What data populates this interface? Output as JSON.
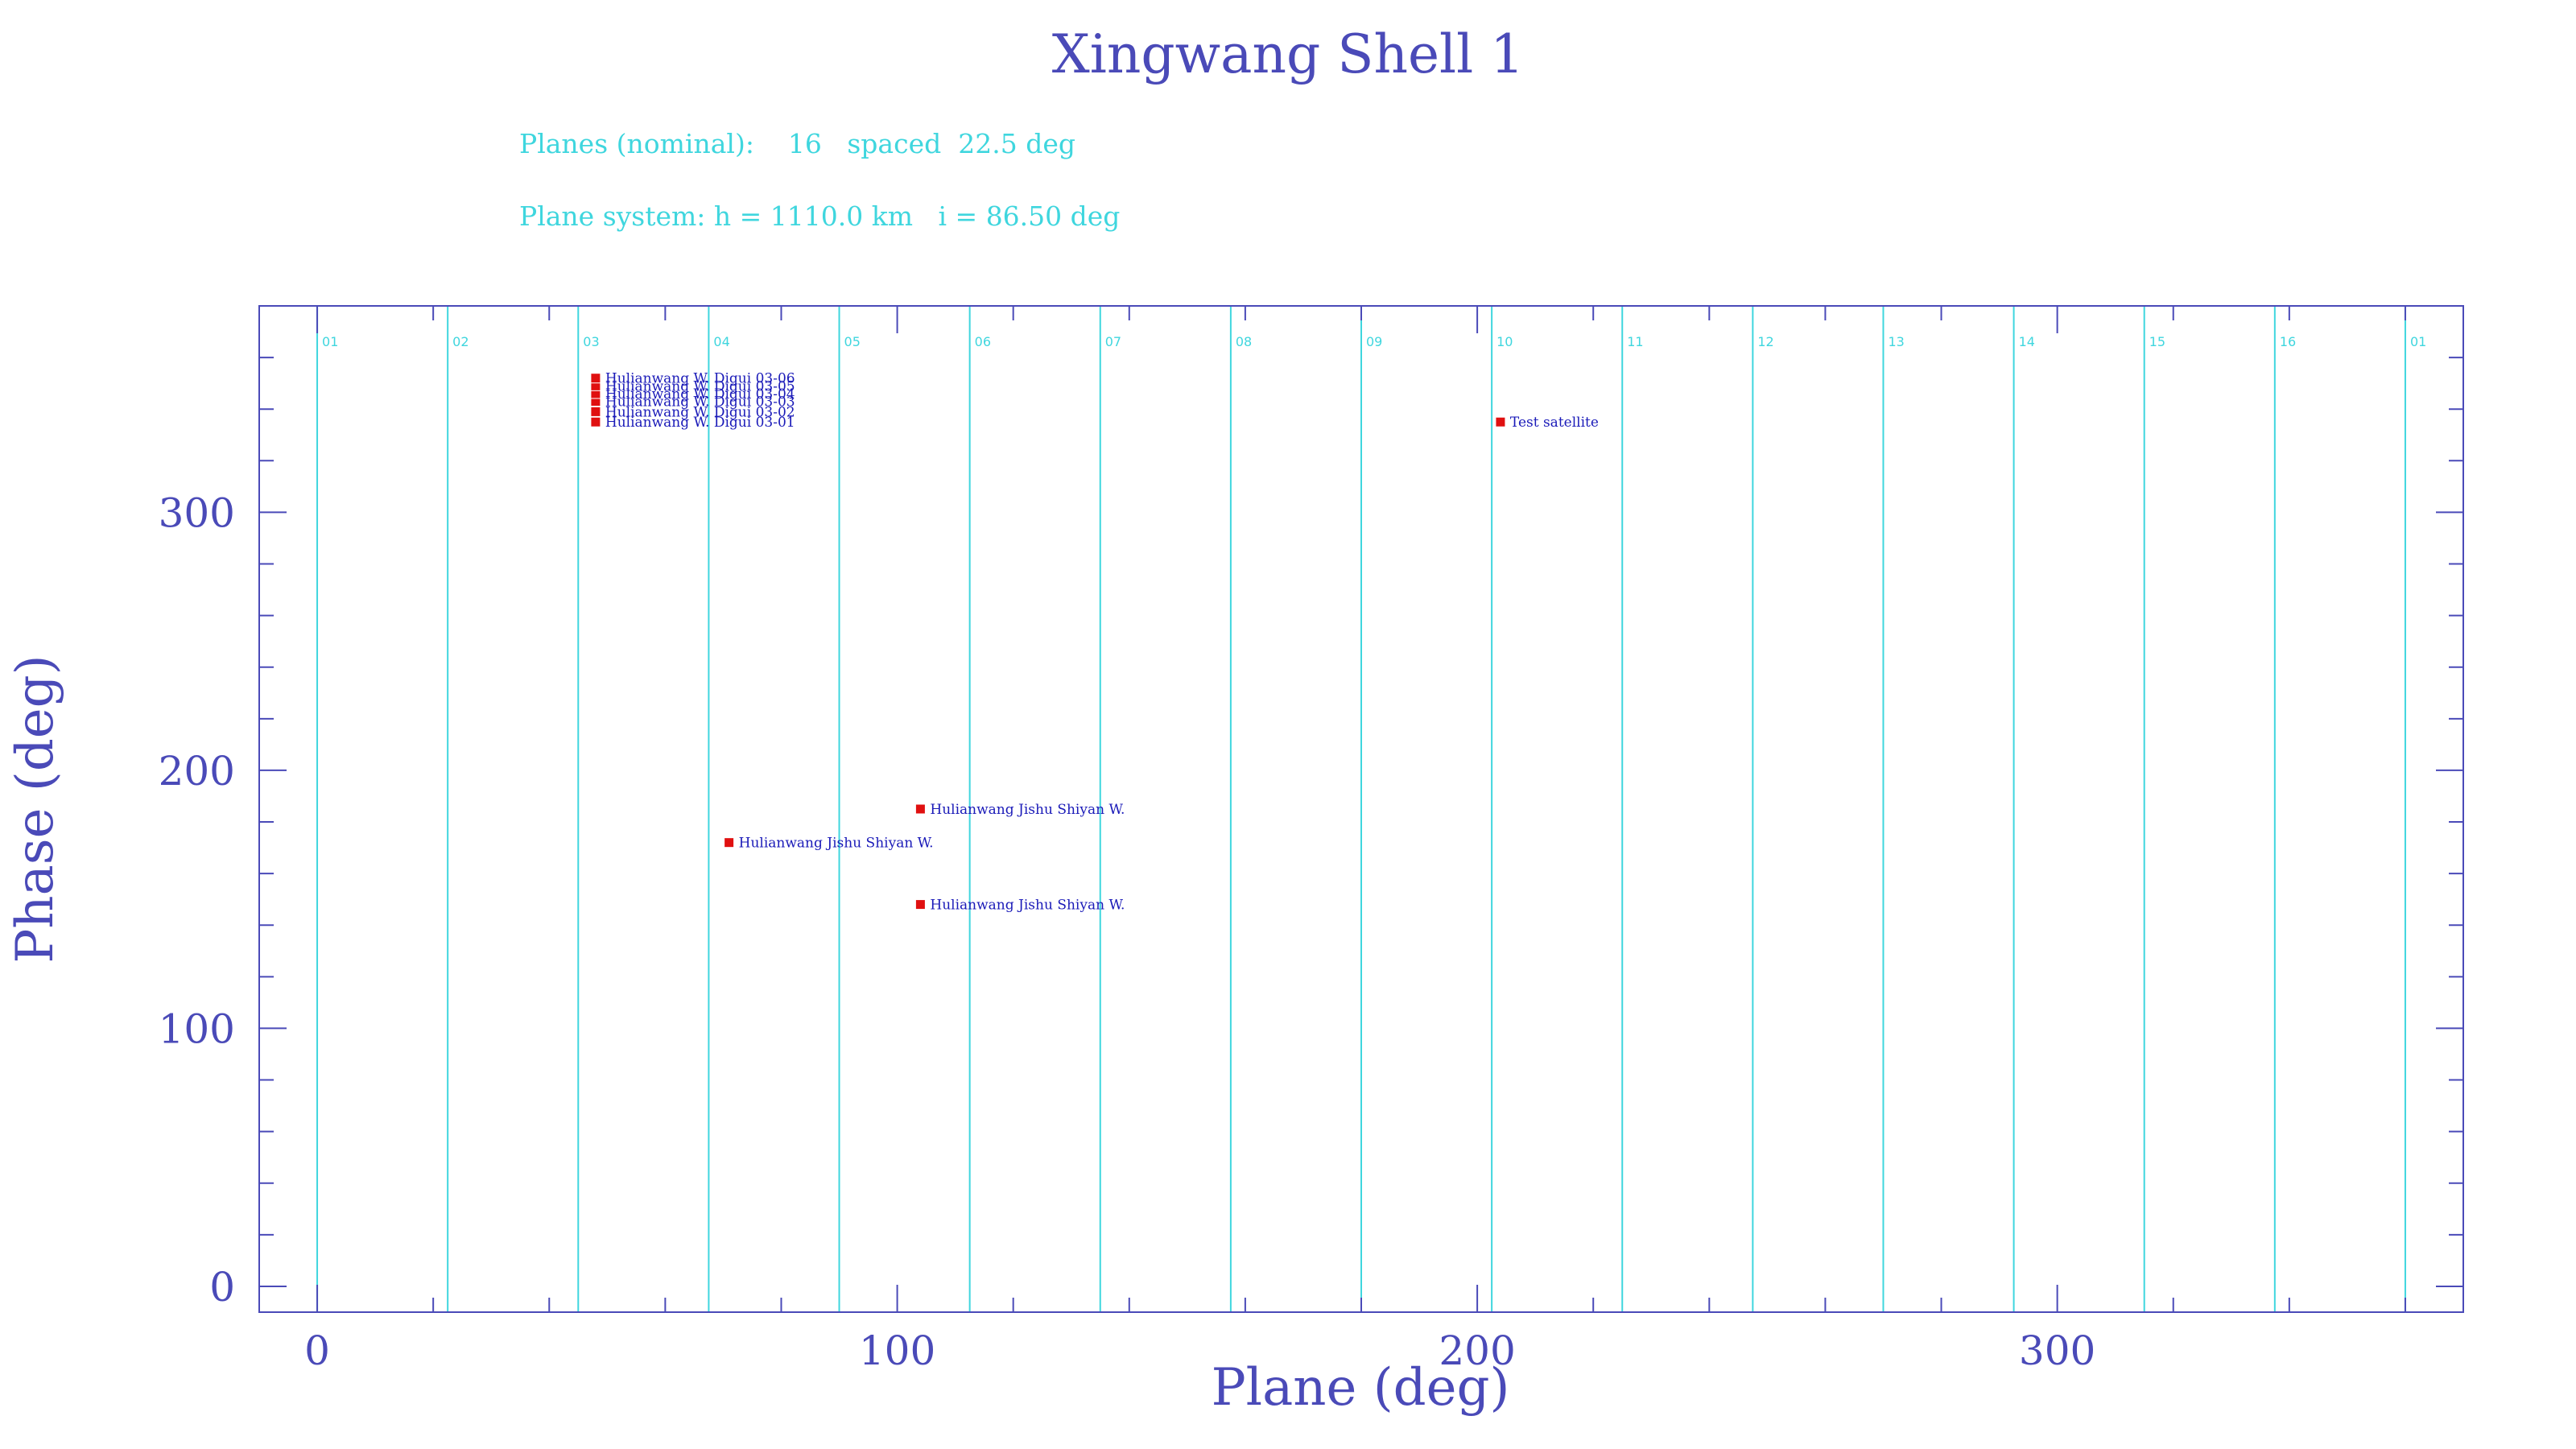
{
  "header": {
    "title": "Xingwang Shell 1",
    "planes_line": "Planes (nominal):    16   spaced  22.5 deg",
    "system_line": "Plane system: h = 1110.0 km   i = 86.50 deg"
  },
  "colors": {
    "axis": "#4a4ab8",
    "plane_line": "#3fd6de",
    "marker": "#e01010",
    "sat_label": "#1a1ab8"
  },
  "chart_data": {
    "type": "scatter",
    "title": "Xingwang Shell 1",
    "xlabel": "Plane (deg)",
    "ylabel": "Phase (deg)",
    "xlim": [
      -10,
      370
    ],
    "ylim": [
      -10,
      380
    ],
    "x_ticks": [
      0,
      100,
      200,
      300
    ],
    "y_ticks": [
      0,
      100,
      200,
      300
    ],
    "plane_spacing": 22.5,
    "planes": [
      {
        "label": "01",
        "x": 0
      },
      {
        "label": "02",
        "x": 22.5
      },
      {
        "label": "03",
        "x": 45
      },
      {
        "label": "04",
        "x": 67.5
      },
      {
        "label": "05",
        "x": 90
      },
      {
        "label": "06",
        "x": 112.5
      },
      {
        "label": "07",
        "x": 135
      },
      {
        "label": "08",
        "x": 157.5
      },
      {
        "label": "09",
        "x": 180
      },
      {
        "label": "10",
        "x": 202.5
      },
      {
        "label": "11",
        "x": 225
      },
      {
        "label": "12",
        "x": 247.5
      },
      {
        "label": "13",
        "x": 270
      },
      {
        "label": "14",
        "x": 292.5
      },
      {
        "label": "15",
        "x": 315
      },
      {
        "label": "16",
        "x": 337.5
      },
      {
        "label": "01",
        "x": 360
      }
    ],
    "points": [
      {
        "label": "Hulianwang W. Digui 03-01",
        "x": 48,
        "y": 335
      },
      {
        "label": "Hulianwang W. Digui 03-02",
        "x": 48,
        "y": 339
      },
      {
        "label": "Hulianwang W. Digui 03-03",
        "x": 48,
        "y": 343
      },
      {
        "label": "Hulianwang W. Digui 03-04",
        "x": 48,
        "y": 346
      },
      {
        "label": "Hulianwang W. Digui 03-05",
        "x": 48,
        "y": 349
      },
      {
        "label": "Hulianwang W. Digui 03-06",
        "x": 48,
        "y": 352
      },
      {
        "label": "Test satellite",
        "x": 204,
        "y": 335
      },
      {
        "label": "Hulianwang Jishu Shiyan W.",
        "x": 104,
        "y": 185
      },
      {
        "label": "Hulianwang Jishu Shiyan W.",
        "x": 71,
        "y": 172
      },
      {
        "label": "Hulianwang Jishu Shiyan W.",
        "x": 104,
        "y": 148
      }
    ]
  }
}
